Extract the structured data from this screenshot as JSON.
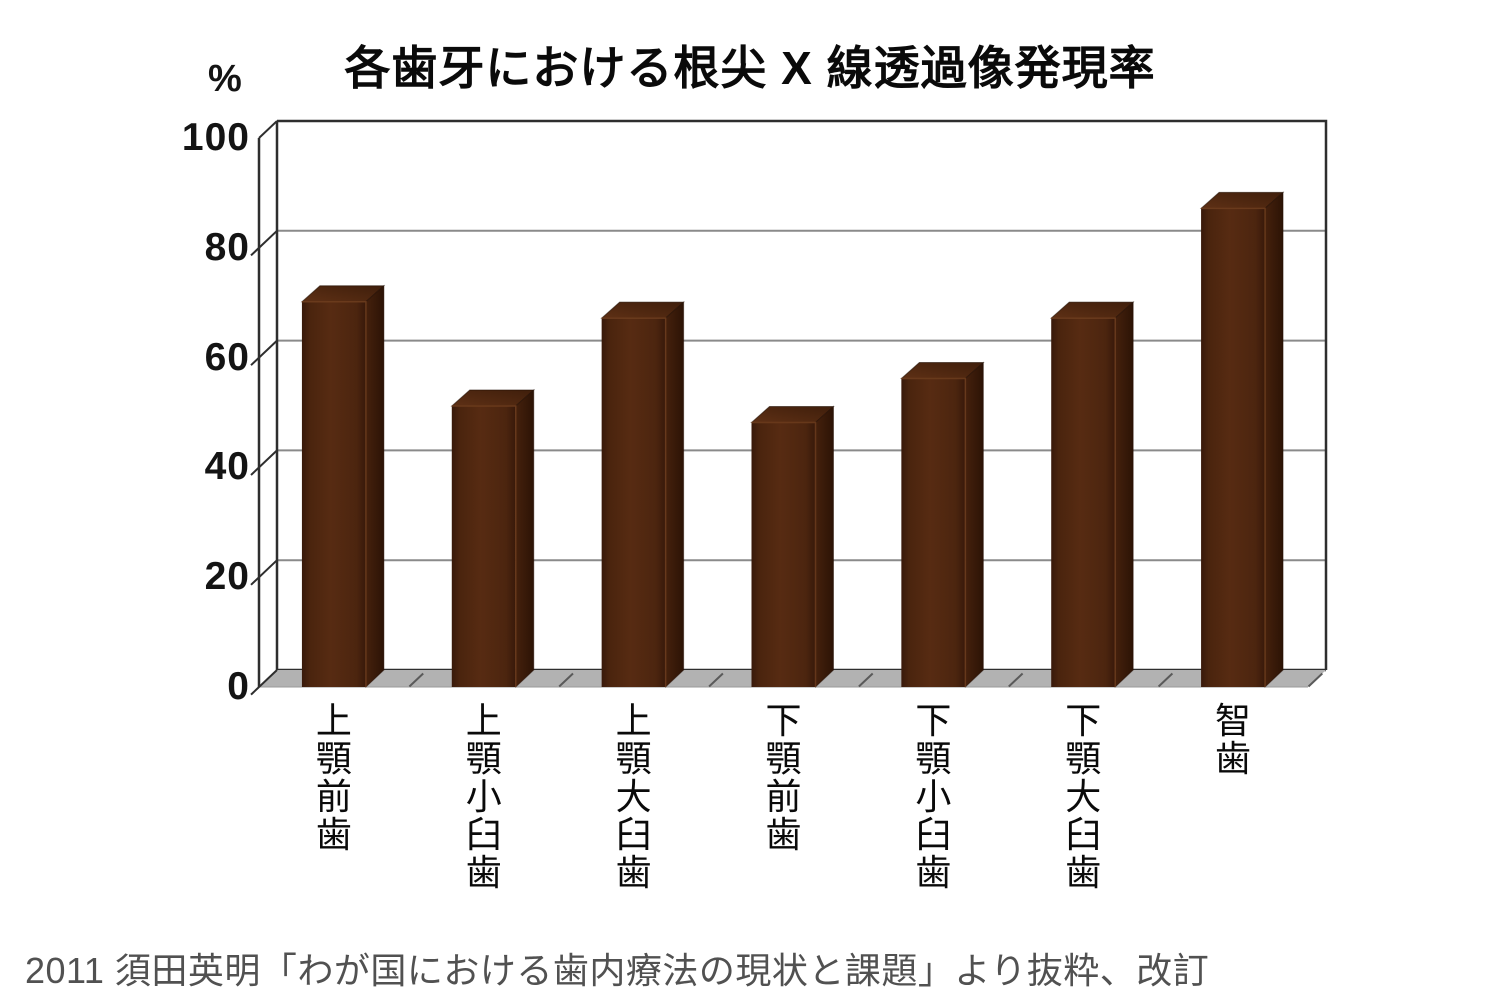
{
  "title": "各歯牙における根尖 X 線透過像発現率",
  "y_axis": {
    "unit_label": "%",
    "ticks": [
      0,
      20,
      40,
      60,
      80,
      100
    ]
  },
  "chart_data": {
    "type": "bar",
    "style": "3d-column",
    "title": "各歯牙における根尖 X 線透過像発現率",
    "xlabel": "",
    "ylabel": "%",
    "ylim": [
      0,
      100
    ],
    "ytick_step": 20,
    "grid": true,
    "legend": false,
    "categories": [
      "上顎前歯",
      "上顎小臼歯",
      "上顎大臼歯",
      "下顎前歯",
      "下顎小臼歯",
      "下顎大臼歯",
      "智歯"
    ],
    "values": [
      70,
      51,
      67,
      48,
      56,
      67,
      87
    ],
    "colors": {
      "bar_front_mid": "#572b12",
      "bar_front_edge": "#38190a",
      "bar_side_light": "#45210d",
      "bar_side_dark": "#2c1305",
      "bar_top_light": "#5e3015",
      "bar_top_dark": "#3f1e0b",
      "bar_ridge": "#713f1e",
      "gridline": "#8a8a8a",
      "frame": "#2e2e2e",
      "floor": "#b2b2b2",
      "floor_tick": "#5a5a5a"
    }
  },
  "caption": "2011 須田英明「わが国における歯内療法の現状と課題」より抜粋、改訂"
}
